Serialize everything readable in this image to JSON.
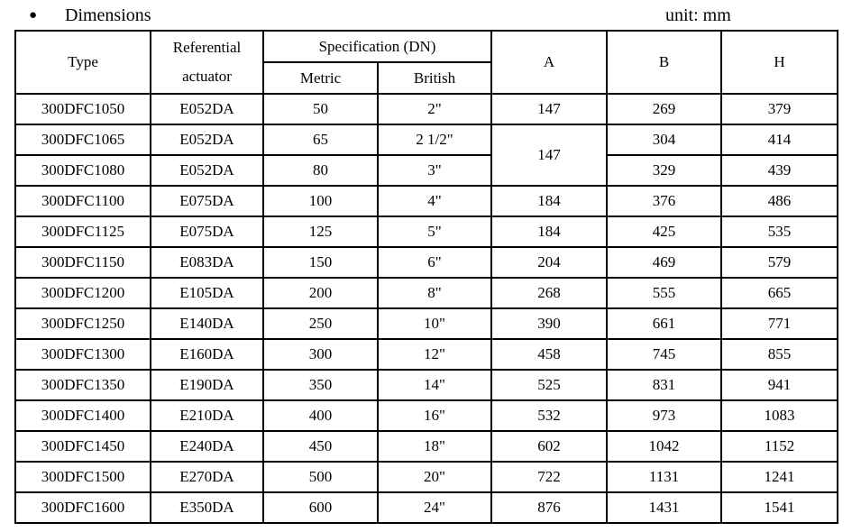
{
  "page": {
    "bullet": "●",
    "title": "Dimensions",
    "unit_label": "unit: mm"
  },
  "table": {
    "header": {
      "type": "Type",
      "referential_line1": "Referential",
      "referential_line2": "actuator",
      "specification": "Specification (DN)",
      "metric": "Metric",
      "british": "British",
      "a": "A",
      "b": "B",
      "h": "H"
    },
    "rows": [
      {
        "type": "300DFC1050",
        "actuator": "E052DA",
        "metric": "50",
        "british": "2\"",
        "a": "147",
        "b": "269",
        "h": "379"
      },
      {
        "type": "300DFC1065",
        "actuator": "E052DA",
        "metric": "65",
        "british": "2 1/2\"",
        "a": "147",
        "a_rowspan": 2,
        "b": "304",
        "h": "414"
      },
      {
        "type": "300DFC1080",
        "actuator": "E052DA",
        "metric": "80",
        "british": "3\"",
        "a": null,
        "b": "329",
        "h": "439"
      },
      {
        "type": "300DFC1100",
        "actuator": "E075DA",
        "metric": "100",
        "british": "4\"",
        "a": "184",
        "b": "376",
        "h": "486"
      },
      {
        "type": "300DFC1125",
        "actuator": "E075DA",
        "metric": "125",
        "british": "5\"",
        "a": "184",
        "b": "425",
        "h": "535"
      },
      {
        "type": "300DFC1150",
        "actuator": "E083DA",
        "metric": "150",
        "british": "6\"",
        "a": "204",
        "b": "469",
        "h": "579"
      },
      {
        "type": "300DFC1200",
        "actuator": "E105DA",
        "metric": "200",
        "british": "8\"",
        "a": "268",
        "b": "555",
        "h": "665"
      },
      {
        "type": "300DFC1250",
        "actuator": "E140DA",
        "metric": "250",
        "british": "10\"",
        "a": "390",
        "b": "661",
        "h": "771"
      },
      {
        "type": "300DFC1300",
        "actuator": "E160DA",
        "metric": "300",
        "british": "12\"",
        "a": "458",
        "b": "745",
        "h": "855"
      },
      {
        "type": "300DFC1350",
        "actuator": "E190DA",
        "metric": "350",
        "british": "14\"",
        "a": "525",
        "b": "831",
        "h": "941"
      },
      {
        "type": "300DFC1400",
        "actuator": "E210DA",
        "metric": "400",
        "british": "16\"",
        "a": "532",
        "b": "973",
        "h": "1083"
      },
      {
        "type": "300DFC1450",
        "actuator": "E240DA",
        "metric": "450",
        "british": "18\"",
        "a": "602",
        "b": "1042",
        "h": "1152"
      },
      {
        "type": "300DFC1500",
        "actuator": "E270DA",
        "metric": "500",
        "british": "20\"",
        "a": "722",
        "b": "1131",
        "h": "1241"
      },
      {
        "type": "300DFC1600",
        "actuator": "E350DA",
        "metric": "600",
        "british": "24\"",
        "a": "876",
        "b": "1431",
        "h": "1541"
      }
    ]
  }
}
